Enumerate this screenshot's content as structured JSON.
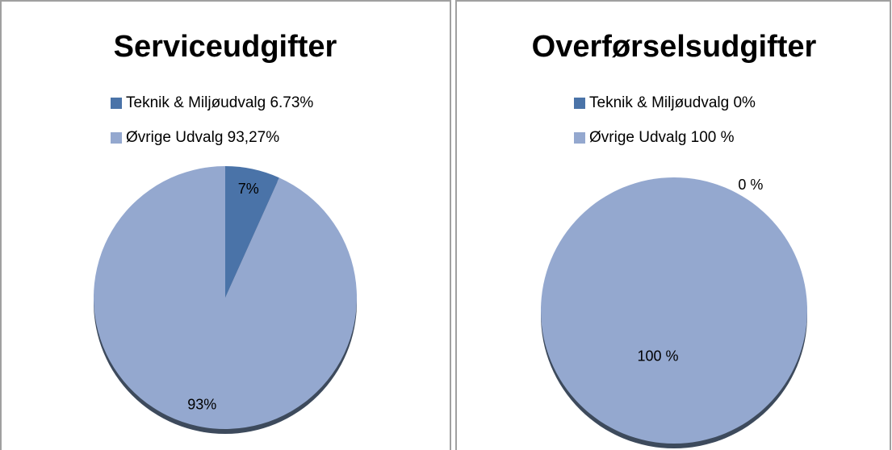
{
  "chart_data": [
    {
      "type": "pie",
      "title": "Serviceudgifter",
      "series": [
        {
          "name": "Teknik & Miljøudvalg 6.73%",
          "color": "#4a73a8",
          "values": [
            6.73
          ]
        },
        {
          "name": "Øvrige Udvalg 93,27%",
          "color": "#94a8cf",
          "values": [
            93.27
          ]
        }
      ],
      "value_labels": [
        "7%",
        "93%"
      ]
    },
    {
      "type": "pie",
      "title": "Overførselsudgifter",
      "series": [
        {
          "name": "Teknik & Miljøudvalg 0%",
          "color": "#4a73a8",
          "values": [
            0
          ]
        },
        {
          "name": "Øvrige Udvalg 100 %",
          "color": "#94a8cf",
          "values": [
            100
          ]
        }
      ],
      "value_labels": [
        "0 %",
        "100 %"
      ]
    }
  ]
}
